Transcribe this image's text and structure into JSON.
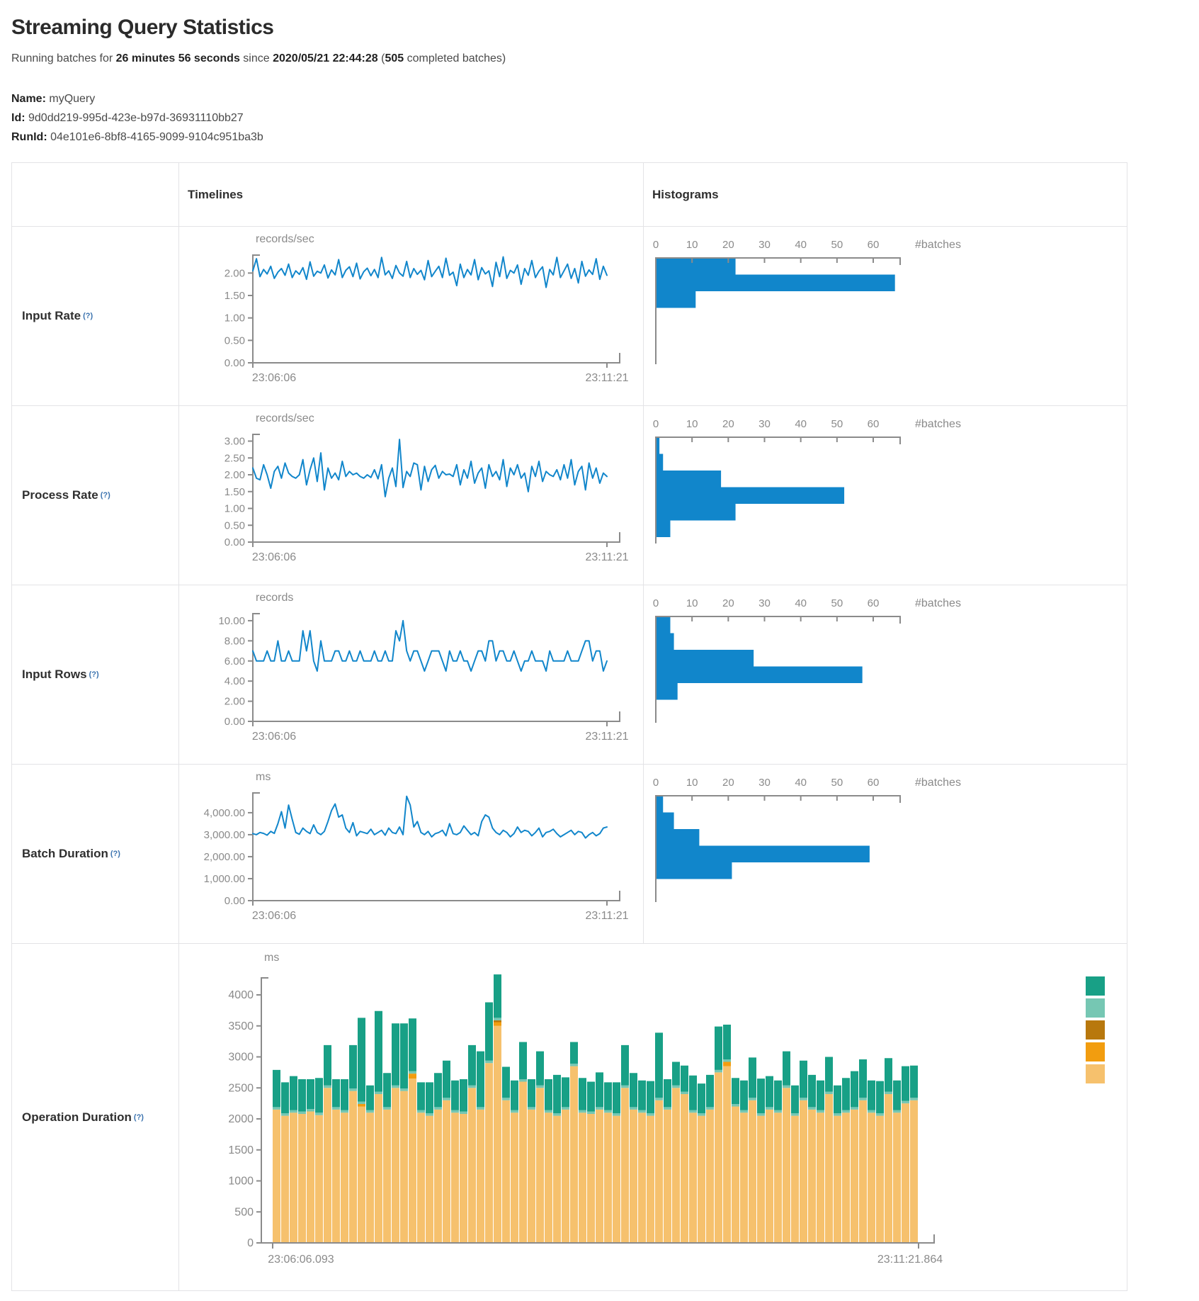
{
  "header": {
    "title": "Streaming Query Statistics",
    "running": {
      "prefix": "Running batches for ",
      "duration": "26 minutes 56 seconds",
      "middle": " since ",
      "start_time": "2020/05/21 22:44:28",
      "paren_open": " (",
      "batches_count": "505",
      "suffix": " completed batches)"
    },
    "meta": [
      {
        "label": "Name:",
        "value": "myQuery"
      },
      {
        "label": "Id:",
        "value": "9d0dd219-995d-423e-b97d-36931110bb27"
      },
      {
        "label": "RunId:",
        "value": "04e101e6-8bf8-4165-9099-9104c951ba3b"
      }
    ]
  },
  "table": {
    "col_headers": {
      "timelines": "Timelines",
      "histograms": "Histograms"
    },
    "rows": [
      {
        "label": "Input Rate",
        "help": "(?)"
      },
      {
        "label": "Process Rate",
        "help": "(?)"
      },
      {
        "label": "Input Rows",
        "help": "(?)"
      },
      {
        "label": "Batch Duration",
        "help": "(?)"
      },
      {
        "label": "Operation Duration",
        "help": "(?)"
      }
    ]
  },
  "colors": {
    "accent_blue": "#1186cb",
    "axis_gray": "#8b8b8b",
    "teal": "#18a086",
    "light_teal": "#76c7b3",
    "dark_gold": "#b8780d",
    "orange": "#f29d0f",
    "tan": "#f6c16d"
  },
  "chart_data": [
    {
      "id": "input-rate-timeline",
      "type": "line",
      "unit": "records/sec",
      "color": "#1186cb",
      "x_tick_labels": [
        "23:06:06",
        "23:11:21"
      ],
      "y_ticks": [
        {
          "v": 0,
          "label": "0.00"
        },
        {
          "v": 0.5,
          "label": "0.50"
        },
        {
          "v": 1,
          "label": "1.00"
        },
        {
          "v": 1.5,
          "label": "1.50"
        },
        {
          "v": 2,
          "label": "2.00"
        }
      ],
      "y_max": 2.4,
      "values": [
        2.05,
        2.32,
        1.92,
        2.08,
        1.98,
        2.15,
        1.88,
        2.02,
        2.1,
        1.95,
        2.2,
        1.9,
        2.05,
        1.97,
        2.12,
        1.86,
        2.25,
        1.93,
        2.04,
        2.0,
        2.18,
        1.89,
        2.07,
        1.96,
        2.3,
        1.9,
        2.06,
        2.14,
        1.92,
        2.22,
        1.87,
        2.03,
        2.11,
        1.94,
        2.08,
        1.9,
        2.35,
        1.96,
        2.05,
        1.88,
        2.17,
        2.0,
        1.93,
        2.26,
        1.9,
        2.1,
        1.97,
        2.06,
        1.85,
        2.28,
        1.92,
        2.04,
        2.15,
        1.9,
        2.33,
        1.95,
        2.02,
        1.72,
        2.2,
        1.9,
        2.08,
        1.96,
        2.3,
        1.85,
        2.12,
        1.98,
        2.05,
        1.7,
        2.24,
        1.92,
        2.36,
        1.88,
        2.06,
        2.0,
        2.18,
        1.75,
        2.1,
        1.95,
        2.28,
        1.9,
        2.04,
        2.14,
        1.68,
        2.08,
        1.96,
        2.35,
        1.9,
        2.05,
        2.2,
        1.88,
        2.1,
        1.78,
        2.26,
        1.93,
        2.07,
        1.97,
        2.32,
        1.86,
        2.15,
        1.95
      ]
    },
    {
      "id": "input-rate-histogram",
      "type": "bar",
      "orientation": "horizontal",
      "color": "#1186cb",
      "axis_label": "#batches",
      "x_ticks": [
        0,
        10,
        20,
        30,
        40,
        50,
        60
      ],
      "x_max": 67,
      "values": [
        22,
        66,
        11
      ]
    },
    {
      "id": "process-rate-timeline",
      "type": "line",
      "unit": "records/sec",
      "color": "#1186cb",
      "x_tick_labels": [
        "23:06:06",
        "23:11:21"
      ],
      "y_ticks": [
        {
          "v": 0,
          "label": "0.00"
        },
        {
          "v": 0.5,
          "label": "0.50"
        },
        {
          "v": 1,
          "label": "1.00"
        },
        {
          "v": 1.5,
          "label": "1.50"
        },
        {
          "v": 2,
          "label": "2.00"
        },
        {
          "v": 2.5,
          "label": "2.50"
        },
        {
          "v": 3,
          "label": "3.00"
        }
      ],
      "y_max": 3.2,
      "values": [
        2.2,
        1.9,
        1.85,
        2.3,
        2.0,
        1.6,
        2.1,
        2.25,
        1.9,
        2.35,
        2.05,
        1.95,
        1.9,
        2.0,
        2.45,
        1.7,
        2.15,
        2.5,
        1.8,
        2.65,
        1.55,
        2.2,
        1.9,
        2.05,
        1.85,
        2.4,
        1.95,
        2.1,
        2.0,
        2.05,
        1.95,
        1.9,
        2.0,
        1.92,
        2.15,
        1.88,
        2.3,
        1.35,
        1.9,
        2.2,
        1.65,
        3.05,
        1.62,
        2.1,
        1.95,
        2.35,
        2.3,
        1.55,
        2.25,
        1.8,
        2.15,
        2.28,
        1.9,
        2.1,
        2.0,
        2.02,
        1.95,
        2.3,
        1.7,
        2.15,
        1.9,
        2.4,
        1.75,
        2.05,
        2.2,
        1.6,
        2.3,
        1.95,
        2.1,
        1.85,
        2.45,
        1.65,
        2.2,
        2.0,
        2.3,
        1.9,
        2.05,
        1.5,
        2.25,
        1.95,
        2.4,
        1.8,
        2.1,
        2.0,
        1.95,
        2.15,
        1.85,
        2.3,
        1.9,
        2.45,
        1.7,
        2.1,
        2.25,
        1.55,
        2.35,
        1.9,
        2.2,
        1.75,
        2.05,
        1.95
      ]
    },
    {
      "id": "process-rate-histogram",
      "type": "bar",
      "orientation": "horizontal",
      "color": "#1186cb",
      "axis_label": "#batches",
      "x_ticks": [
        0,
        10,
        20,
        30,
        40,
        50,
        60
      ],
      "x_max": 67,
      "values": [
        1,
        2,
        18,
        52,
        22,
        4
      ]
    },
    {
      "id": "input-rows-timeline",
      "type": "line",
      "unit": "records",
      "color": "#1186cb",
      "x_tick_labels": [
        "23:06:06",
        "23:11:21"
      ],
      "y_ticks": [
        {
          "v": 0,
          "label": "0.00"
        },
        {
          "v": 2,
          "label": "2.00"
        },
        {
          "v": 4,
          "label": "4.00"
        },
        {
          "v": 6,
          "label": "6.00"
        },
        {
          "v": 8,
          "label": "8.00"
        },
        {
          "v": 10,
          "label": "10.00"
        }
      ],
      "y_max": 10.7,
      "values": [
        7,
        6,
        6,
        6,
        7,
        6,
        6,
        8,
        6,
        6,
        7,
        6,
        6,
        6,
        9,
        7,
        9,
        6,
        5,
        8,
        6,
        6,
        6,
        7,
        7,
        6,
        6,
        7,
        6,
        6,
        7,
        6,
        6,
        6,
        7,
        6,
        6,
        7,
        6,
        6,
        9,
        8,
        10,
        7,
        6,
        7,
        7,
        6,
        5,
        6,
        7,
        7,
        7,
        6,
        5,
        7,
        6,
        6,
        7,
        6,
        6,
        5,
        6,
        7,
        7,
        6,
        8,
        8,
        6,
        7,
        7,
        6,
        6,
        7,
        6,
        5,
        6,
        6,
        7,
        6,
        6,
        6,
        5,
        7,
        6,
        6,
        6,
        6,
        7,
        6,
        6,
        6,
        7,
        8,
        8,
        6,
        7,
        7,
        5,
        6
      ]
    },
    {
      "id": "input-rows-histogram",
      "type": "bar",
      "orientation": "horizontal",
      "color": "#1186cb",
      "axis_label": "#batches",
      "x_ticks": [
        0,
        10,
        20,
        30,
        40,
        50,
        60
      ],
      "x_max": 67,
      "values": [
        4,
        5,
        27,
        57,
        6
      ]
    },
    {
      "id": "batch-duration-timeline",
      "type": "line",
      "unit": "ms",
      "color": "#1186cb",
      "x_tick_labels": [
        "23:06:06",
        "23:11:21"
      ],
      "y_ticks": [
        {
          "v": 0,
          "label": "0.00"
        },
        {
          "v": 1000,
          "label": "1,000.00"
        },
        {
          "v": 2000,
          "label": "2,000.00"
        },
        {
          "v": 3000,
          "label": "3,000.00"
        },
        {
          "v": 4000,
          "label": "4,000.00"
        }
      ],
      "y_max": 4900,
      "values": [
        3050,
        3000,
        3100,
        3060,
        2980,
        3150,
        3060,
        3500,
        4050,
        3300,
        4350,
        3700,
        3100,
        3020,
        3300,
        3150,
        3050,
        3450,
        3100,
        3000,
        3150,
        3600,
        4100,
        4400,
        3800,
        3900,
        3300,
        3100,
        3550,
        2950,
        3150,
        3100,
        3050,
        3250,
        3000,
        3100,
        3200,
        2980,
        3300,
        3100,
        3050,
        3350,
        3000,
        4750,
        4350,
        3350,
        3600,
        3100,
        3000,
        3150,
        2900,
        3050,
        3100,
        3200,
        2950,
        3500,
        3050,
        3000,
        3100,
        3400,
        3200,
        3000,
        3100,
        2950,
        3600,
        3900,
        3800,
        3300,
        3100,
        3000,
        3200,
        3100,
        2900,
        3050,
        3350,
        3100,
        3200,
        3150,
        2950,
        3100,
        3300,
        2900,
        3100,
        3150,
        3250,
        3050,
        2900,
        3000,
        3100,
        3200,
        3000,
        3150,
        3100,
        2850,
        3000,
        3100,
        2950,
        3050,
        3300,
        3350
      ]
    },
    {
      "id": "batch-duration-histogram",
      "type": "bar",
      "orientation": "horizontal",
      "color": "#1186cb",
      "axis_label": "#batches",
      "x_ticks": [
        0,
        10,
        20,
        30,
        40,
        50,
        60
      ],
      "x_max": 67,
      "values": [
        2,
        5,
        12,
        59,
        21
      ]
    },
    {
      "id": "operation-duration-stacked",
      "type": "area",
      "subtype": "stacked-bar",
      "unit": "ms",
      "x_tick_labels": [
        "23:06:06.093",
        "23:11:21.864"
      ],
      "y_ticks": [
        {
          "v": 0,
          "label": "0"
        },
        {
          "v": 500,
          "label": "500"
        },
        {
          "v": 1000,
          "label": "1000"
        },
        {
          "v": 1500,
          "label": "1500"
        },
        {
          "v": 2000,
          "label": "2000"
        },
        {
          "v": 2500,
          "label": "2500"
        },
        {
          "v": 3000,
          "label": "3000"
        },
        {
          "v": 3500,
          "label": "3500"
        },
        {
          "v": 4000,
          "label": "4000"
        }
      ],
      "y_scale_max": 4000,
      "legend_colors": [
        "#18a086",
        "#76c7b3",
        "#b8780d",
        "#f29d0f",
        "#f6c16d"
      ],
      "series": [
        {
          "name": "tan",
          "color": "#f6c16d",
          "values": [
            2150,
            2050,
            2100,
            2080,
            2120,
            2060,
            2500,
            2150,
            2100,
            2450,
            2200,
            2100,
            2400,
            2150,
            2500,
            2450,
            2650,
            2100,
            2050,
            2150,
            2300,
            2100,
            2080,
            2500,
            2150,
            2900,
            3500,
            2300,
            2100,
            2600,
            2150,
            2500,
            2100,
            2050,
            2150,
            2850,
            2100,
            2080,
            2150,
            2100,
            2050,
            2500,
            2150,
            2100,
            2050,
            2300,
            2150,
            2500,
            2400,
            2100,
            2050,
            2150,
            2750,
            2850,
            2200,
            2100,
            2300,
            2050,
            2150,
            2100,
            2500,
            2050,
            2300,
            2150,
            2100,
            2400,
            2050,
            2100,
            2150,
            2300,
            2100,
            2050,
            2400,
            2100,
            2250,
            2300
          ]
        },
        {
          "name": "orange",
          "color": "#f29d0f",
          "values": [
            0,
            0,
            0,
            0,
            0,
            0,
            0,
            0,
            0,
            0,
            40,
            0,
            0,
            0,
            0,
            0,
            80,
            0,
            0,
            0,
            0,
            0,
            0,
            0,
            0,
            0,
            60,
            0,
            0,
            0,
            0,
            0,
            0,
            0,
            0,
            0,
            0,
            0,
            0,
            0,
            0,
            0,
            0,
            0,
            0,
            0,
            0,
            0,
            0,
            0,
            0,
            0,
            0,
            70,
            0,
            0,
            0,
            0,
            0,
            0,
            0,
            0,
            0,
            0,
            0,
            0,
            0,
            0,
            0,
            0,
            0,
            0,
            0,
            0,
            0,
            0
          ]
        },
        {
          "name": "dark-gold",
          "color": "#b8780d",
          "values": [
            0,
            0,
            0,
            0,
            0,
            0,
            0,
            0,
            0,
            0,
            0,
            0,
            0,
            0,
            0,
            0,
            0,
            0,
            0,
            0,
            0,
            0,
            0,
            0,
            0,
            0,
            30,
            0,
            0,
            0,
            0,
            0,
            0,
            0,
            0,
            0,
            0,
            0,
            0,
            0,
            0,
            0,
            0,
            0,
            0,
            0,
            0,
            0,
            0,
            0,
            0,
            0,
            0,
            0,
            0,
            0,
            0,
            0,
            0,
            0,
            0,
            0,
            0,
            0,
            0,
            0,
            0,
            0,
            0,
            0,
            0,
            0,
            0,
            0,
            0,
            0
          ]
        },
        {
          "name": "light-teal",
          "color": "#76c7b3",
          "values": [
            40,
            40,
            40,
            40,
            40,
            40,
            40,
            40,
            40,
            40,
            40,
            40,
            40,
            40,
            40,
            40,
            40,
            40,
            40,
            40,
            40,
            40,
            40,
            40,
            40,
            40,
            40,
            40,
            40,
            40,
            40,
            40,
            40,
            40,
            40,
            40,
            40,
            40,
            40,
            40,
            40,
            40,
            40,
            40,
            40,
            40,
            40,
            40,
            40,
            40,
            40,
            40,
            40,
            40,
            40,
            40,
            40,
            40,
            40,
            40,
            40,
            40,
            40,
            40,
            40,
            40,
            40,
            40,
            40,
            40,
            40,
            40,
            40,
            40,
            40,
            40
          ]
        },
        {
          "name": "teal",
          "color": "#18a086",
          "values": [
            600,
            500,
            550,
            520,
            480,
            560,
            650,
            450,
            500,
            700,
            1350,
            400,
            1300,
            550,
            1000,
            1050,
            850,
            450,
            500,
            550,
            600,
            480,
            520,
            650,
            900,
            940,
            700,
            500,
            480,
            600,
            450,
            550,
            500,
            620,
            480,
            350,
            520,
            480,
            560,
            450,
            500,
            650,
            550,
            480,
            520,
            1050,
            450,
            380,
            420,
            560,
            480,
            520,
            700,
            560,
            420,
            480,
            650,
            560,
            500,
            480,
            550,
            450,
            600,
            520,
            480,
            560,
            450,
            520,
            580,
            620,
            480,
            520,
            540,
            480,
            560,
            520
          ]
        }
      ]
    }
  ]
}
